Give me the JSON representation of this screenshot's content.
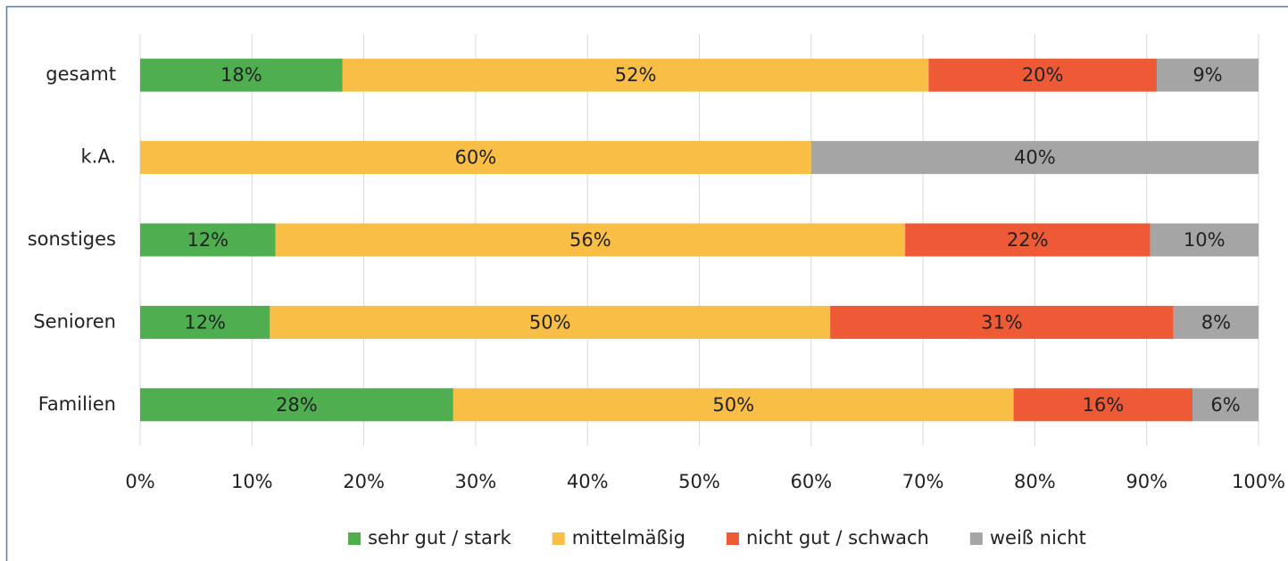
{
  "chart_data": {
    "type": "stacked-bar-horizontal",
    "categories": [
      "gesamt",
      "k.A.",
      "sonstiges",
      "Senioren",
      "Familien"
    ],
    "series": [
      {
        "name": "sehr gut / stark",
        "color": "#4eae50",
        "values": [
          18.1,
          0,
          12.1,
          11.6,
          28
        ],
        "value_labels": [
          "18%",
          null,
          "12%",
          "12%",
          "28%"
        ]
      },
      {
        "name": "mittelmäßig",
        "color": "#f9be45",
        "values": [
          52.4,
          60,
          56.3,
          50.1,
          50.1
        ],
        "value_labels": [
          "52%",
          "60%",
          "56%",
          "50%",
          "50%"
        ]
      },
      {
        "name": "nicht gut / schwach",
        "color": "#ee5a35",
        "values": [
          20.4,
          0,
          21.9,
          30.7,
          16
        ],
        "value_labels": [
          "20%",
          null,
          "22%",
          "31%",
          "16%"
        ]
      },
      {
        "name": "weiß nicht",
        "color": "#a5a5a5",
        "values": [
          9.1,
          40,
          9.7,
          7.6,
          5.9
        ],
        "value_labels": [
          "9%",
          "40%",
          "10%",
          "8%",
          "6%"
        ]
      }
    ],
    "xlim": [
      0,
      100
    ],
    "xticks": [
      {
        "value": 0,
        "label": "0%"
      },
      {
        "value": 10,
        "label": "10%"
      },
      {
        "value": 20,
        "label": "20%"
      },
      {
        "value": 30,
        "label": "30%"
      },
      {
        "value": 40,
        "label": "40%"
      },
      {
        "value": 50,
        "label": "50%"
      },
      {
        "value": 60,
        "label": "60%"
      },
      {
        "value": 70,
        "label": "70%"
      },
      {
        "value": 80,
        "label": "80%"
      },
      {
        "value": 90,
        "label": "90%"
      },
      {
        "value": 100,
        "label": "100%"
      }
    ],
    "grid": true,
    "legend": "bottom"
  }
}
